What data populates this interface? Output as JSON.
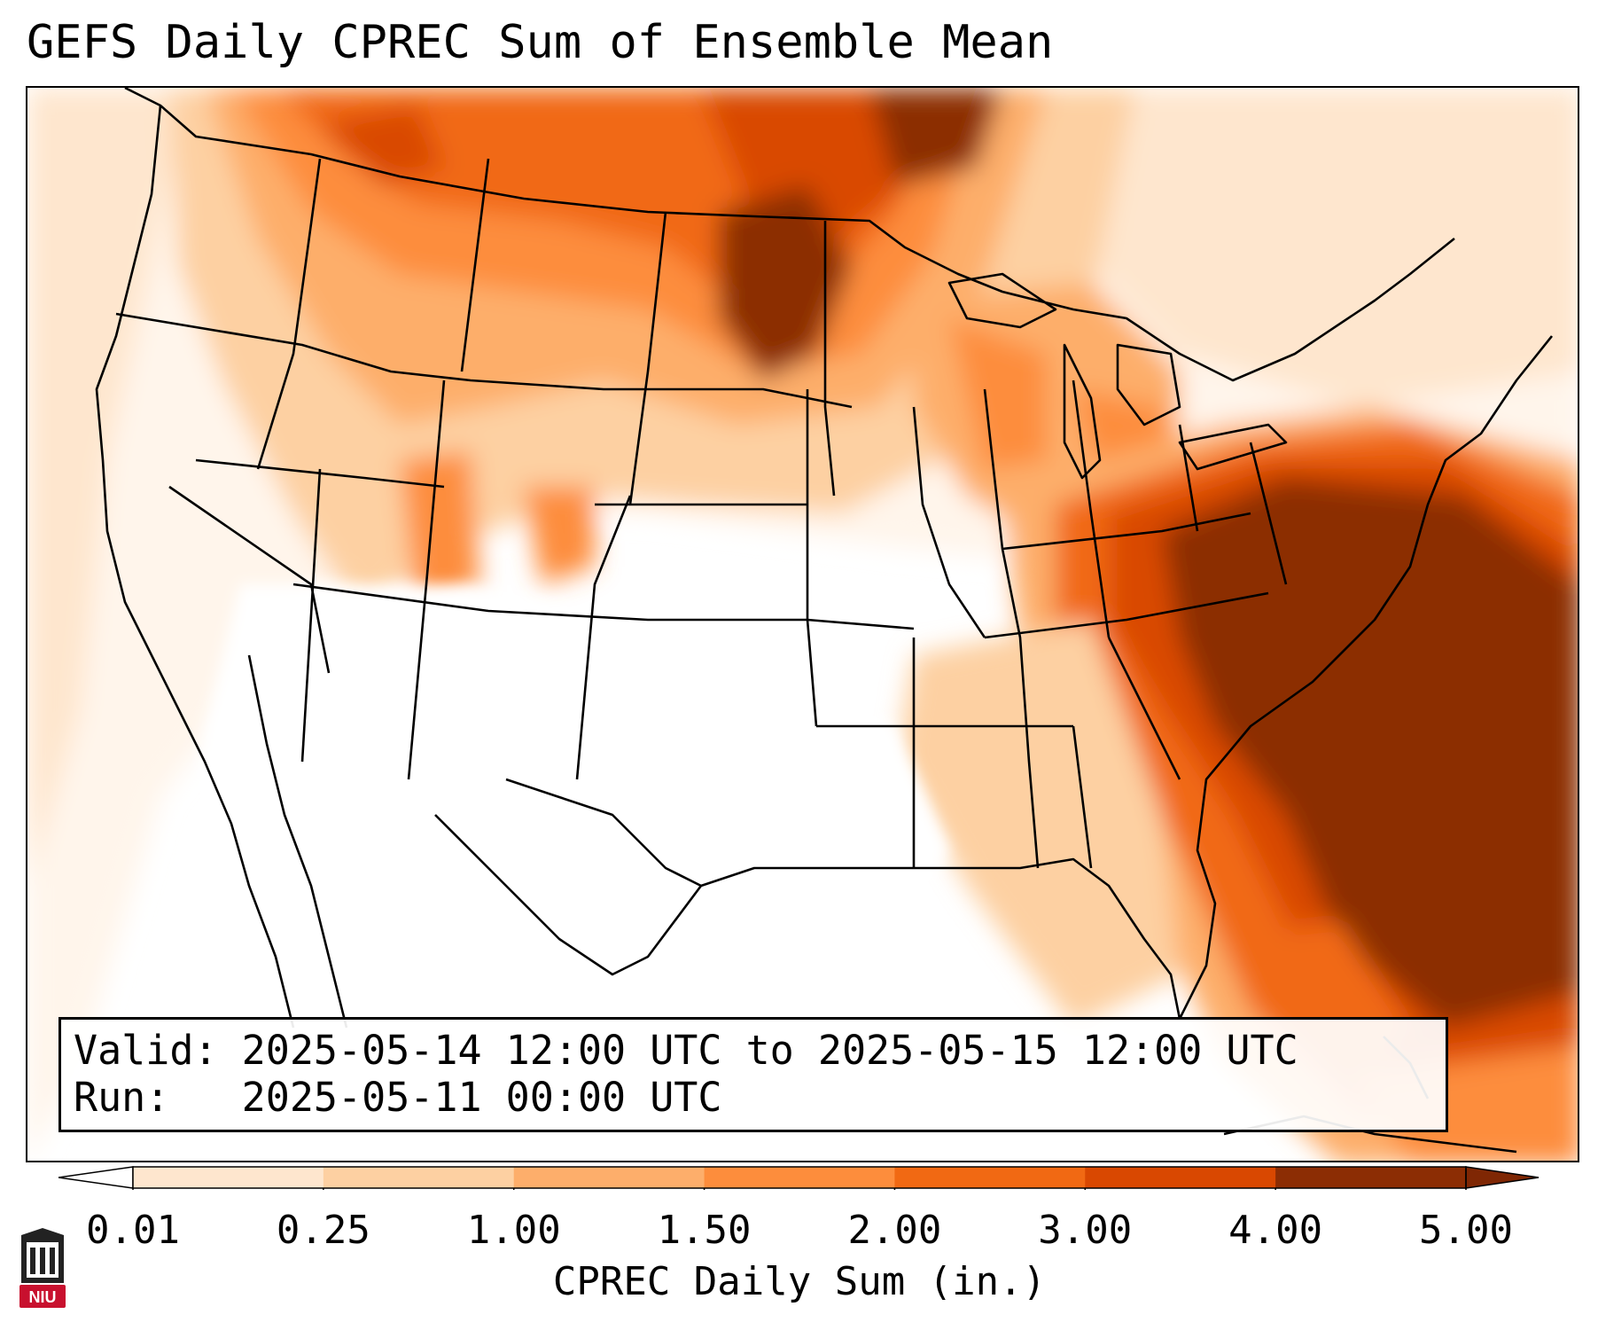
{
  "title": "GEFS Daily CPREC Sum of Ensemble Mean",
  "info": {
    "valid": "Valid: 2025-05-14 12:00 UTC to 2025-05-15 12:00 UTC",
    "run": "Run:   2025-05-11 00:00 UTC"
  },
  "colorbar": {
    "label": "CPREC Daily Sum (in.)",
    "ticks": [
      "0.01",
      "0.25",
      "1.00",
      "1.50",
      "2.00",
      "3.00",
      "4.00",
      "5.00"
    ],
    "colors": [
      "#fff5eb",
      "#fee6ce",
      "#fdd0a2",
      "#fdae6b",
      "#fd8d3c",
      "#f16913",
      "#d94801",
      "#8c2d04"
    ],
    "under_color": "#ffffff",
    "over_color": "#7f2704"
  },
  "logo": {
    "text": "NIU",
    "color": "#c8102e"
  }
}
